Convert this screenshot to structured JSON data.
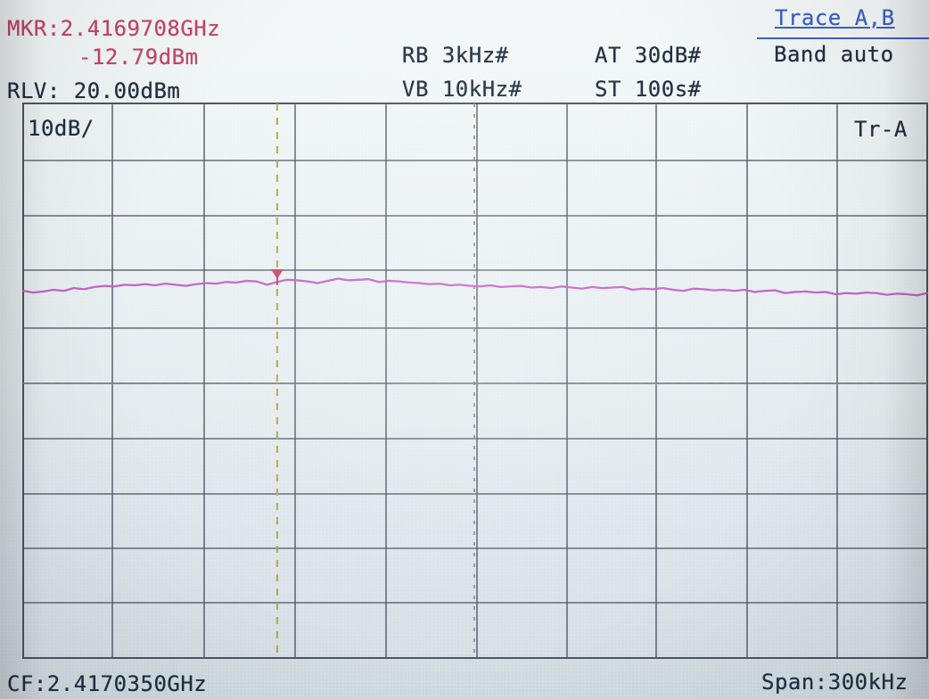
{
  "header": {
    "marker_frequency": "MKR:2.4169708GHz",
    "marker_level": "-12.79dBm",
    "reference_level": "RLV: 20.00dBm",
    "resolution_bandwidth": "RB 3kHz#",
    "video_bandwidth": "VB 10kHz#",
    "attenuation": "AT 30dB#",
    "sweep_time": "ST 100s#"
  },
  "softkeys": {
    "trace": "Trace A,B",
    "band": "Band auto"
  },
  "graticule": {
    "scale": "10dB/",
    "trace_label": "Tr-A"
  },
  "footer": {
    "center_frequency": "CF:2.4170350GHz",
    "span": "Span:300kHz"
  },
  "colors": {
    "background": "#e3ecef",
    "grid": "#4c5562",
    "trace": "#c35bc7",
    "marker": "#c44768",
    "highlight": "#3d61c9",
    "marker_line": "#c4a143",
    "center_line": "#7e8793"
  },
  "marker": {
    "frequency_ghz": 2.4169708,
    "level_dbm": -12.79,
    "position_fraction": 0.281
  },
  "trace": {
    "values": [
      -13.8,
      -14.1,
      -13.9,
      -13.6,
      -13.8,
      -13.3,
      -13.5,
      -13.1,
      -12.9,
      -13.0,
      -12.7,
      -12.8,
      -12.6,
      -12.8,
      -12.5,
      -12.7,
      -12.9,
      -12.6,
      -12.4,
      -12.5,
      -12.2,
      -12.3,
      -12.0,
      -12.1,
      -12.7,
      -12.2,
      -11.8,
      -11.9,
      -12.1,
      -12.4,
      -12.0,
      -11.6,
      -11.9,
      -11.8,
      -11.7,
      -12.2,
      -12.0,
      -12.1,
      -12.3,
      -12.4,
      -12.6,
      -12.5,
      -12.8,
      -12.7,
      -12.9,
      -13.0,
      -12.8,
      -13.1,
      -13.0,
      -12.9,
      -13.2,
      -13.1,
      -13.3,
      -13.0,
      -13.2,
      -13.4,
      -13.1,
      -13.3,
      -13.2,
      -13.1,
      -13.6,
      -13.4,
      -13.5,
      -13.3,
      -13.6,
      -13.8,
      -13.4,
      -13.5,
      -13.7,
      -13.6,
      -13.8,
      -13.6,
      -14.0,
      -13.8,
      -13.7,
      -14.2,
      -14.0,
      -13.9,
      -14.1,
      -14.0,
      -14.4,
      -14.2,
      -14.3,
      -14.1,
      -14.2,
      -14.5,
      -14.3,
      -14.4,
      -14.6,
      -14.2
    ]
  }
}
